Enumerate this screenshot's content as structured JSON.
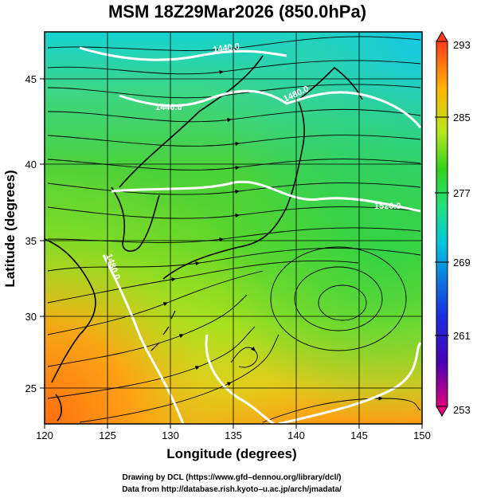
{
  "title": "MSM 18Z29Mar2026 (850.0hPa)",
  "x_axis": {
    "label": "Longitude (degrees)",
    "range": [
      120,
      150
    ],
    "ticks": [
      "120",
      "125",
      "130",
      "135",
      "140",
      "145",
      "150"
    ]
  },
  "y_axis": {
    "label": "Latitude  (degrees)",
    "range": [
      22.4,
      47.6
    ],
    "ticks": [
      "25",
      "30",
      "35",
      "40",
      "45"
    ]
  },
  "colorbar": {
    "range": [
      253,
      293
    ],
    "labels": [
      "293",
      "285",
      "277",
      "269",
      "261",
      "253"
    ],
    "colors": [
      "#e0007f",
      "#4a00b4",
      "#1a2fe0",
      "#00c8dc",
      "#28e07c",
      "#32d21e",
      "#b4e61e",
      "#ffb400",
      "#ff3c1e"
    ]
  },
  "contour_labels": [
    "1440.0",
    "1440.0",
    "1480.0",
    "1480.0",
    "1520.0"
  ],
  "credits": {
    "line1": "Drawing by DCL (https://www.gfd–dennou.org/library/dcl/)",
    "line2": "Data from http://database.rish.kyoto–u.ac.jp/arch/jmadata/"
  },
  "colors": {
    "background": "#ffffff",
    "contour": "#ffffff",
    "streamline": "#000000"
  }
}
